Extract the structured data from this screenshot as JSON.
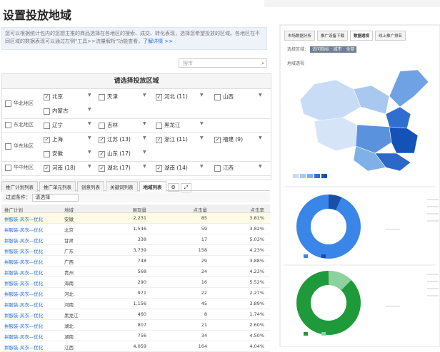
{
  "header": {
    "title": "设置投放地域"
  },
  "notice": {
    "text": "您可以根据统计包内的您想主推的商品选择在各地区的搜索、成交、转化表现，选择您希望投放的区域。各地区在不同区域的数据表现可以通过左侧\"工具>>流量解析\"功能查看，",
    "link": "了解详情 >>"
  },
  "search": {
    "placeholder": "搜市"
  },
  "region_picker": {
    "title": "请选择投放区域",
    "groups": [
      {
        "name": "华北地区",
        "rows": [
          [
            {
              "label": "北京",
              "checked": true
            },
            {
              "label": "天津",
              "checked": false
            },
            {
              "label": "河北 (11)",
              "checked": true
            },
            {
              "label": "山西",
              "checked": false
            }
          ],
          [
            {
              "label": "内蒙古",
              "checked": false
            }
          ]
        ]
      },
      {
        "name": "东北地区",
        "rows": [
          [
            {
              "label": "辽宁",
              "checked": false
            },
            {
              "label": "吉林",
              "checked": false
            },
            {
              "label": "黑龙江",
              "checked": false
            }
          ]
        ]
      },
      {
        "name": "华东地区",
        "rows": [
          [
            {
              "label": "上海",
              "checked": true
            },
            {
              "label": "江苏 (13)",
              "checked": true
            },
            {
              "label": "浙江 (11)",
              "checked": true
            },
            {
              "label": "福建 (9)",
              "checked": true
            }
          ],
          [
            {
              "label": "安徽",
              "checked": false
            },
            {
              "label": "山东 (17)",
              "checked": true
            }
          ]
        ]
      },
      {
        "name": "华中地区",
        "rows": [
          [
            {
              "label": "河南 (18)",
              "checked": true
            },
            {
              "label": "湖北 (17)",
              "checked": true
            },
            {
              "label": "湖南 (14)",
              "checked": true
            },
            {
              "label": "江西",
              "checked": false
            }
          ]
        ]
      }
    ]
  },
  "tabs": {
    "items": [
      "推广计划列表",
      "推广单元列表",
      "创意列表",
      "关键词列表",
      "地域列表"
    ],
    "active": 4
  },
  "filter": {
    "label": "过滤条件：",
    "select": "请选择"
  },
  "table": {
    "columns": [
      "推广计划",
      "地域",
      "展现量",
      "点击量",
      "点击率"
    ],
    "rows": [
      [
        "拼服装-风衣—优化",
        "安徽",
        "2,231",
        "85",
        "3.81%"
      ],
      [
        "拼服装-风衣—优化",
        "北京",
        "1,546",
        "59",
        "3.82%"
      ],
      [
        "拼服装-风衣—优化",
        "甘肃",
        "338",
        "17",
        "5.03%"
      ],
      [
        "拼服装-风衣—优化",
        "广东",
        "3,739",
        "158",
        "4.23%"
      ],
      [
        "拼服装-风衣—优化",
        "广西",
        "748",
        "29",
        "3.88%"
      ],
      [
        "拼服装-风衣—优化",
        "贵州",
        "568",
        "24",
        "4.23%"
      ],
      [
        "拼服装-风衣—优化",
        "海南",
        "290",
        "16",
        "5.52%"
      ],
      [
        "拼服装-风衣—优化",
        "河北",
        "971",
        "22",
        "2.27%"
      ],
      [
        "拼服装-风衣—优化",
        "河南",
        "1,156",
        "45",
        "3.89%"
      ],
      [
        "拼服装-风衣—优化",
        "黑龙江",
        "460",
        "8",
        "1.74%"
      ],
      [
        "拼服装-风衣—优化",
        "湖北",
        "807",
        "21",
        "2.60%"
      ],
      [
        "拼服装-风衣—优化",
        "湖南",
        "756",
        "34",
        "4.50%"
      ],
      [
        "拼服装-风衣—优化",
        "江西",
        "4,059",
        "164",
        "4.04%"
      ]
    ]
  },
  "right_panel": {
    "tabs": [
      "市场数据分析",
      "推广设备下载",
      "数据透视",
      "线上推广排名"
    ],
    "active_tab": 2,
    "filter_label": "选择区域：",
    "filter_button": "访问指标 · 城市 · 全部",
    "map_title": "地域透视"
  }
}
